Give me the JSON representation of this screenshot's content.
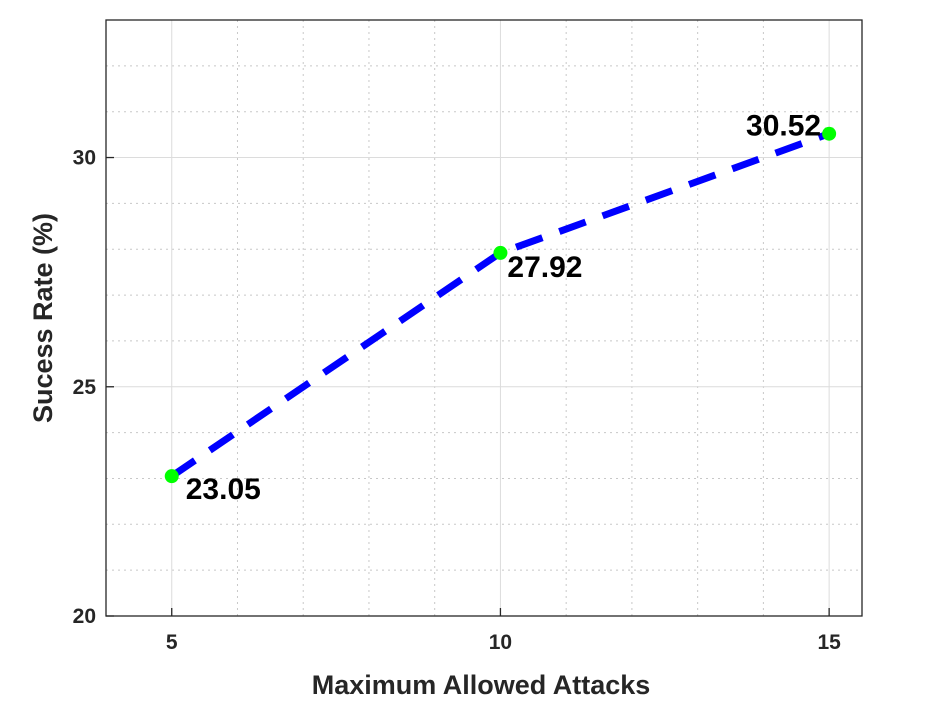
{
  "chart_data": {
    "type": "line",
    "title": "",
    "xlabel": "Maximum Allowed Attacks",
    "ylabel": "Sucess Rate (%)",
    "xlim": [
      4,
      15.5
    ],
    "ylim": [
      20,
      33
    ],
    "x_ticks": [
      5,
      10,
      15
    ],
    "y_ticks": [
      20,
      25,
      30
    ],
    "x_minor_ticks": [
      6,
      7,
      8,
      9,
      11,
      12,
      13,
      14
    ],
    "y_minor_ticks": [
      21,
      22,
      23,
      24,
      26,
      27,
      28,
      29,
      31,
      32
    ],
    "grid": true,
    "series": [
      {
        "x": [
          5,
          10,
          15
        ],
        "values": [
          23.05,
          27.92,
          30.52
        ],
        "data_labels": [
          "23.05",
          "27.92",
          "30.52"
        ],
        "line_color": "#0000ff",
        "line_style": "dashed",
        "marker_color": "#00ff00"
      }
    ]
  }
}
